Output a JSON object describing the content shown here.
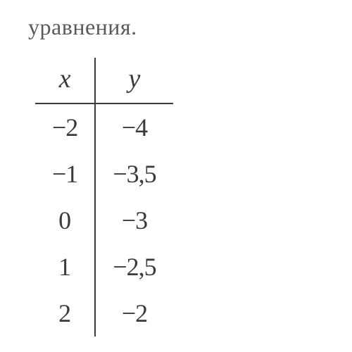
{
  "caption": "уравнения.",
  "table": {
    "columns": [
      "x",
      "y"
    ],
    "rows": [
      [
        "−2",
        "−4"
      ],
      [
        "−1",
        "−3,5"
      ],
      [
        "0",
        "−3"
      ],
      [
        "1",
        "−2,5"
      ],
      [
        "2",
        "−2"
      ]
    ],
    "border_color": "#3a3a3a",
    "text_color": "#3a3a3a",
    "caption_color": "#5a5a5a",
    "header_fontsize": 38,
    "cell_fontsize": 36,
    "background_color": "#ffffff"
  }
}
